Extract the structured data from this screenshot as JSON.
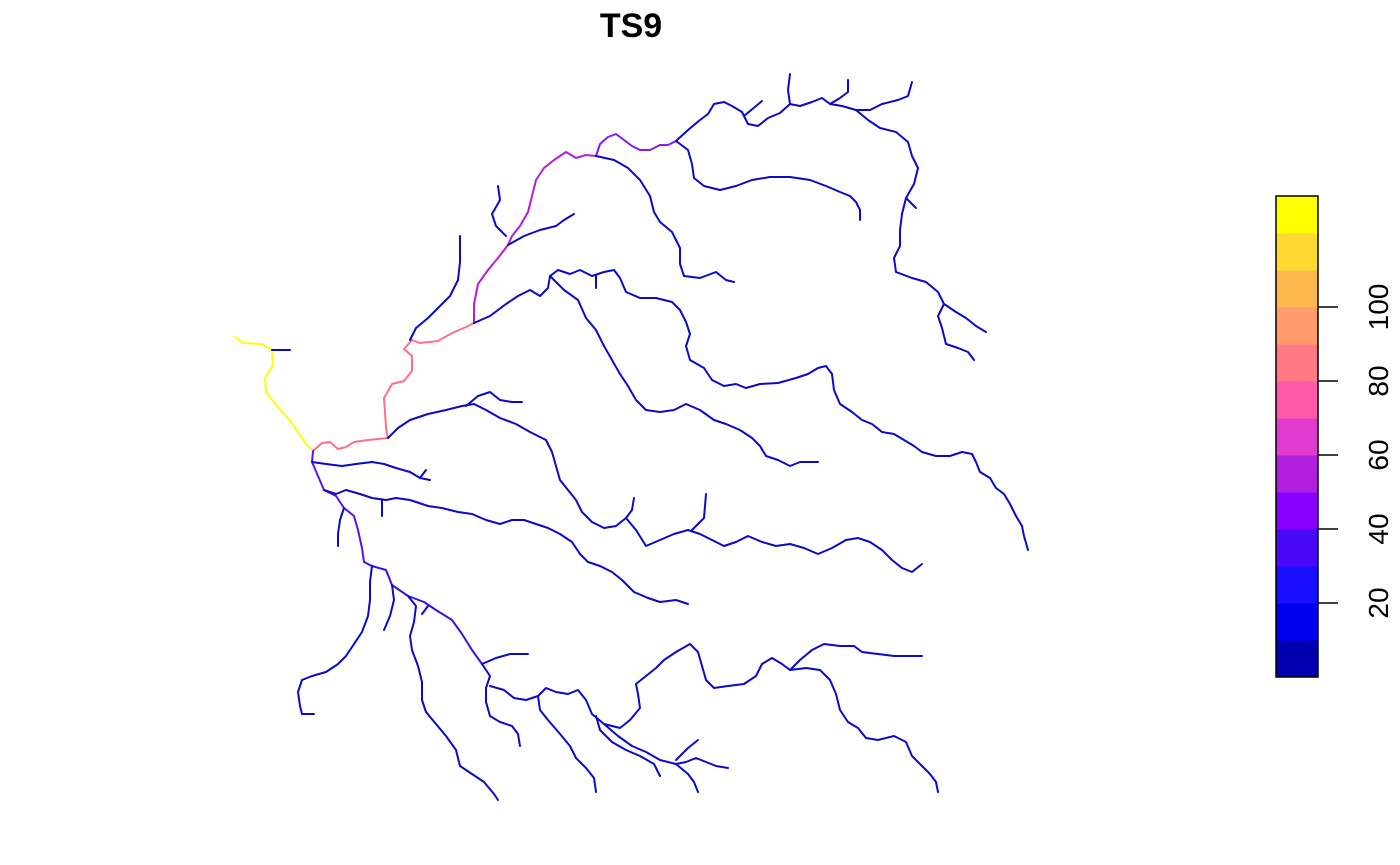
{
  "title": "TS9",
  "legend": {
    "type": "colorbar",
    "ticks": [
      "20",
      "40",
      "60",
      "80",
      "100"
    ],
    "tick_values": [
      20,
      40,
      60,
      80,
      100
    ],
    "range": [
      0,
      110
    ],
    "bins": [
      {
        "from": 0,
        "to": 10,
        "color": "#0000B0"
      },
      {
        "from": 10,
        "to": 20,
        "color": "#0000EE"
      },
      {
        "from": 20,
        "to": 30,
        "color": "#1A10FF"
      },
      {
        "from": 30,
        "to": 40,
        "color": "#4A08F8"
      },
      {
        "from": 40,
        "to": 50,
        "color": "#8800FF"
      },
      {
        "from": 50,
        "to": 60,
        "color": "#B21EDD"
      },
      {
        "from": 60,
        "to": 70,
        "color": "#E03ACE"
      },
      {
        "from": 70,
        "to": 80,
        "color": "#FF5AAA"
      },
      {
        "from": 80,
        "to": 90,
        "color": "#FF7A84"
      },
      {
        "from": 90,
        "to": 100,
        "color": "#FF9A6C"
      },
      {
        "from": 100,
        "to": 110,
        "color": "#FFB84C"
      },
      {
        "from": 110,
        "to": 120,
        "color": "#FFD830"
      },
      {
        "from": 120,
        "to": 130,
        "color": "#FFFF00"
      }
    ]
  },
  "river_network": {
    "main_stem_levels": [
      {
        "segment": "outlet",
        "value": 125,
        "color": "#FFFF00"
      },
      {
        "segment": "lower-main",
        "value": 85,
        "color": "#FF6F86"
      },
      {
        "segment": "middle-main",
        "value": 55,
        "color": "#B020D8"
      },
      {
        "segment": "upper-main",
        "value": 48,
        "color": "#8818F0"
      },
      {
        "segment": "south-trunk",
        "value": 40,
        "color": "#6010F0"
      },
      {
        "segment": "tributaries",
        "value": 10,
        "color": "#0A0AC8"
      }
    ]
  }
}
